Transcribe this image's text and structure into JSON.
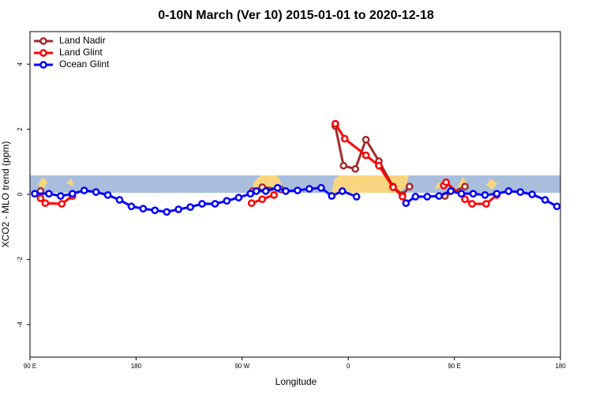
{
  "chart_data": {
    "type": "line",
    "title": "0-10N March (Ver 10)   2015-01-01 to 2020-12-18",
    "x_label": "Longitude",
    "y_label": "XCO2 - MLO trend (ppm)",
    "xlim": [
      90,
      540
    ],
    "xticks": [
      {
        "value": 90,
        "label": "90 E"
      },
      {
        "value": 180,
        "label": "180"
      },
      {
        "value": 270,
        "label": "90 W"
      },
      {
        "value": 360,
        "label": "0"
      },
      {
        "value": 450,
        "label": "90 E"
      },
      {
        "value": 540,
        "label": "180"
      }
    ],
    "ylim": [
      -5,
      5
    ],
    "yticks": [
      -4,
      -2,
      0,
      2,
      4
    ],
    "legend": "top-left",
    "series": [
      {
        "name": "Land Nadir",
        "color": "#a52a2a",
        "x": [
          99,
          null,
          279,
          287,
          303,
          null,
          349,
          356,
          366,
          375,
          386,
          398,
          406,
          412,
          null,
          442,
          459
        ],
        "values": [
          0.1,
          null,
          0.1,
          0.22,
          0.15,
          null,
          2.1,
          0.88,
          0.78,
          1.68,
          1.02,
          0.24,
          -0.02,
          0.24,
          null,
          -0.05,
          0.24
        ]
      },
      {
        "name": "Land Glint",
        "color": "#ff0000",
        "x": [
          99,
          103,
          117,
          126,
          null,
          278,
          287,
          297,
          null,
          349,
          357,
          375,
          386,
          398,
          406,
          null,
          441,
          443,
          459,
          465,
          477,
          486
        ],
        "values": [
          -0.12,
          -0.27,
          -0.29,
          -0.05,
          null,
          -0.27,
          -0.15,
          -0.02,
          null,
          2.17,
          1.71,
          1.2,
          0.88,
          0.22,
          -0.07,
          null,
          0.27,
          0.37,
          -0.15,
          -0.29,
          -0.29,
          -0.02
        ]
      },
      {
        "name": "Ocean Glint",
        "color": "#0000ff",
        "x": [
          94,
          106,
          116,
          126,
          136,
          146,
          156,
          166,
          176,
          186,
          196,
          206,
          216,
          226,
          236,
          247,
          257,
          267,
          277,
          282,
          290,
          300,
          307,
          317,
          327,
          337,
          346,
          355,
          367,
          null,
          409,
          417,
          427,
          437,
          447,
          456,
          466,
          476,
          486,
          496,
          506,
          516,
          527,
          537
        ],
        "values": [
          0.02,
          0.02,
          -0.05,
          0.02,
          0.12,
          0.07,
          -0.02,
          -0.17,
          -0.37,
          -0.44,
          -0.49,
          -0.54,
          -0.46,
          -0.39,
          -0.29,
          -0.29,
          -0.2,
          -0.1,
          0.02,
          0.1,
          0.1,
          0.2,
          0.1,
          0.12,
          0.17,
          0.2,
          -0.05,
          0.1,
          -0.07,
          null,
          -0.27,
          -0.07,
          -0.07,
          -0.05,
          0.1,
          0.02,
          0.02,
          -0.02,
          0.02,
          0.1,
          0.07,
          0,
          -0.17,
          -0.37
        ]
      }
    ]
  }
}
